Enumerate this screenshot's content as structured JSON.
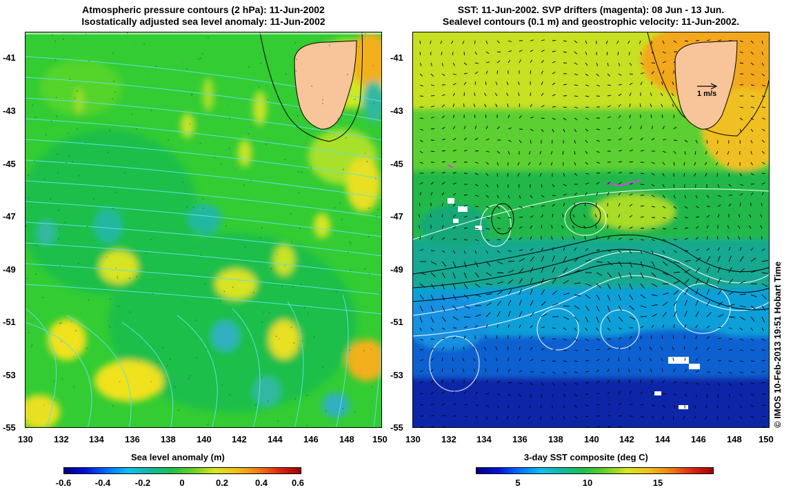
{
  "left_panel": {
    "title_line1": "Atmospheric pressure contours (2 hPa): 11-Jun-2002",
    "title_line2": "Isostatically adjusted sea level anomaly: 11-Jun-2002",
    "y_ticks": [
      "-41",
      "-43",
      "-45",
      "-47",
      "-49",
      "-51",
      "-53",
      "-55"
    ],
    "x_ticks": [
      "130",
      "132",
      "134",
      "136",
      "138",
      "140",
      "142",
      "144",
      "146",
      "148",
      "150"
    ],
    "colorbar": {
      "label": "Sea level anomaly (m)",
      "ticks": [
        "-0.6",
        "-0.4",
        "-0.2",
        "0",
        "0.2",
        "0.4",
        "0.6"
      ],
      "range": [
        -0.6,
        0.6
      ]
    }
  },
  "right_panel": {
    "title_line1": "SST: 11-Jun-2002. SVP drifters (magenta): 08 Jun - 13 Jun.",
    "title_line2": "Sealevel contours (0.1 m) and geostrophic velocity: 11-Jun-2002.",
    "y_ticks": [
      "-41",
      "-43",
      "-45",
      "-47",
      "-49",
      "-51",
      "-53",
      "-55"
    ],
    "x_ticks": [
      "130",
      "132",
      "134",
      "136",
      "138",
      "140",
      "142",
      "144",
      "146",
      "148",
      "150"
    ],
    "scale_label": "1 m/s",
    "colorbar": {
      "label": "3-day SST composite (deg C)",
      "ticks": [
        "5",
        "10",
        "15"
      ],
      "range": [
        2,
        19
      ]
    }
  },
  "map_extent": {
    "lon": [
      130,
      150
    ],
    "lat": [
      -55,
      -40
    ]
  },
  "credit": "© IMOS 10-Feb-2013 19:51 Hobart Time",
  "colors": {
    "land": "#f8c49a",
    "ocean_green": "#2ecc40",
    "pressure_contour": "#5ee0e0",
    "sealevel_contour": "#ffffff",
    "drifter": "#e040e0"
  }
}
